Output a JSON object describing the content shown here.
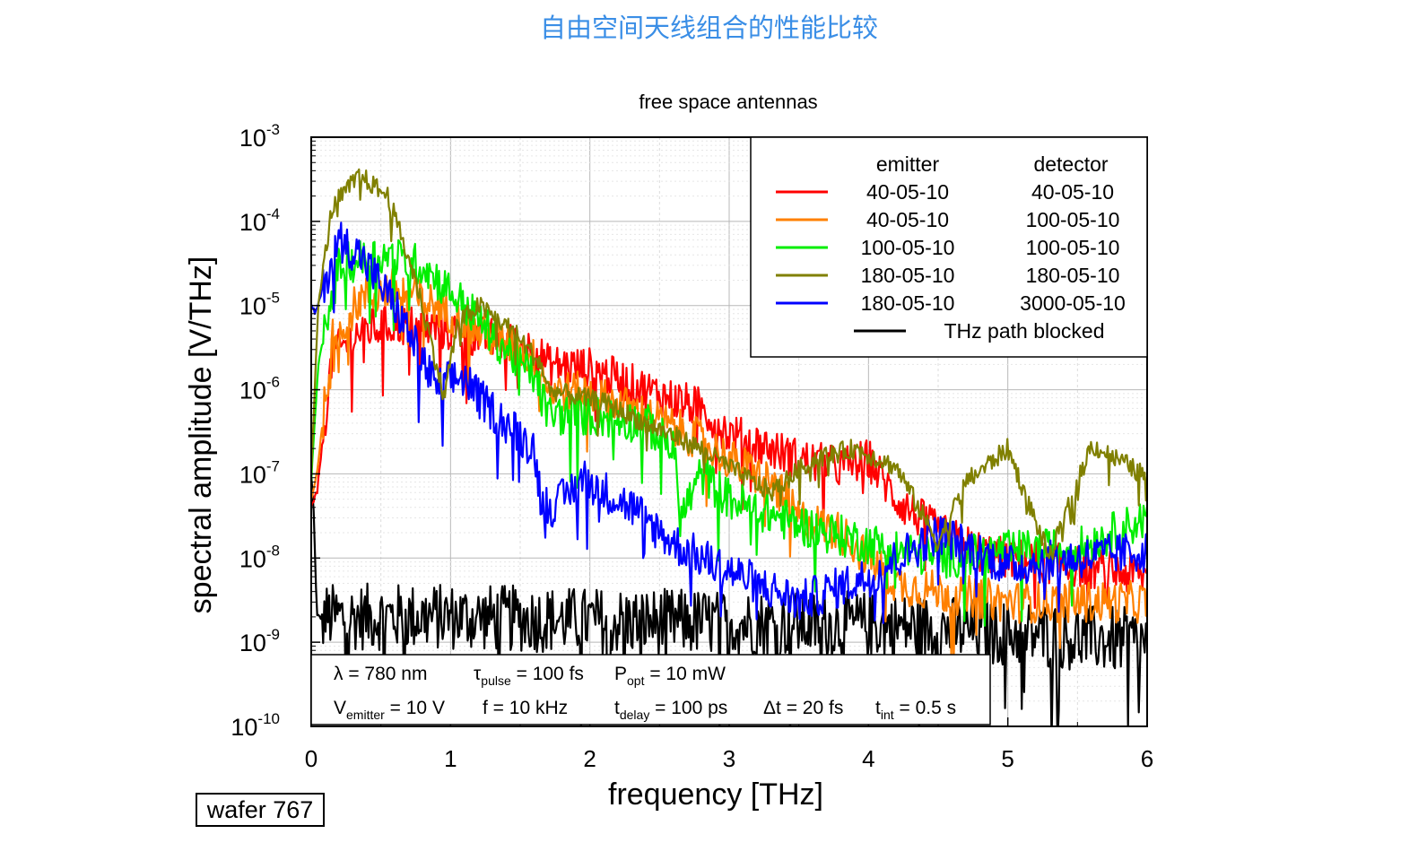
{
  "page": {
    "heading": "自由空间天线组合的性能比较"
  },
  "chart_data": {
    "type": "line",
    "title": "free space antennas",
    "xlabel": "frequency [THz]",
    "ylabel": "spectral amplitude [V/THz]",
    "xlim": [
      0,
      6
    ],
    "ylim": [
      1e-10,
      0.001
    ],
    "yscale": "log",
    "x_ticks": [
      "0",
      "1",
      "2",
      "3",
      "4",
      "5",
      "6"
    ],
    "y_ticks": [
      {
        "base": "10",
        "exp": "-3"
      },
      {
        "base": "10",
        "exp": "-4"
      },
      {
        "base": "10",
        "exp": "-5"
      },
      {
        "base": "10",
        "exp": "-6"
      },
      {
        "base": "10",
        "exp": "-7"
      },
      {
        "base": "10",
        "exp": "-8"
      },
      {
        "base": "10",
        "exp": "-9"
      },
      {
        "base": "10",
        "exp": "-10"
      }
    ],
    "grid": true,
    "legend": {
      "position": "top-right",
      "emitter_header": "emitter",
      "detector_header": "detector",
      "entries": [
        {
          "emitter": "40-05-10",
          "detector": "40-05-10",
          "color": "#ff0000"
        },
        {
          "emitter": "40-05-10",
          "detector": "100-05-10",
          "color": "#ff8000"
        },
        {
          "emitter": "100-05-10",
          "detector": "100-05-10",
          "color": "#00ee00"
        },
        {
          "emitter": "180-05-10",
          "detector": "180-05-10",
          "color": "#808000"
        },
        {
          "emitter": "180-05-10",
          "detector": "3000-05-10",
          "color": "#0000ff"
        },
        {
          "label": "THz path blocked",
          "color": "#000000"
        }
      ]
    },
    "series": [
      {
        "name": "40-05-10 / 40-05-10",
        "color": "#ff0000",
        "noise": 0.25,
        "x": [
          0,
          0.04,
          0.15,
          0.35,
          0.6,
          1.0,
          1.3,
          1.6,
          1.7,
          2.0,
          2.4,
          2.8,
          3.0,
          3.5,
          3.8,
          4.0,
          4.2,
          4.5,
          4.8,
          5.0,
          5.5,
          6.0
        ],
        "y": [
          4e-08,
          6e-08,
          2.5e-06,
          5e-06,
          6e-06,
          5e-06,
          4e-06,
          3e-06,
          2e-06,
          1.8e-06,
          1e-06,
          6e-07,
          3e-07,
          1.5e-07,
          1.2e-07,
          1.5e-07,
          5e-08,
          2e-08,
          1.2e-08,
          1e-08,
          8e-09,
          6e-09
        ]
      },
      {
        "name": "40-05-10 / 100-05-10",
        "color": "#ff8000",
        "noise": 0.25,
        "x": [
          0,
          0.04,
          0.15,
          0.35,
          0.6,
          0.9,
          1.2,
          1.5,
          1.65,
          1.7,
          2.0,
          2.4,
          2.8,
          3.0,
          3.3,
          3.5,
          3.8,
          4.2,
          4.5,
          5.0,
          5.5,
          6.0
        ],
        "y": [
          5e-08,
          1e-07,
          4e-06,
          1.2e-05,
          1.6e-05,
          1e-05,
          5e-06,
          3e-06,
          2e-06,
          1e-06,
          9e-07,
          5e-07,
          2.5e-07,
          1.5e-07,
          8e-08,
          3e-08,
          2e-08,
          5e-09,
          4e-09,
          3e-09,
          3e-09,
          3e-09
        ]
      },
      {
        "name": "100-05-10 / 100-05-10",
        "color": "#00ee00",
        "noise": 0.25,
        "x": [
          0,
          0.05,
          0.2,
          0.5,
          0.8,
          1.1,
          1.4,
          1.6,
          1.7,
          2.0,
          2.4,
          2.6,
          2.65,
          2.8,
          3.0,
          3.5,
          4.0,
          4.5,
          5.0,
          5.5,
          6.0
        ],
        "y": [
          8e-08,
          2e-06,
          3e-05,
          4e-05,
          3e-05,
          1e-05,
          3e-06,
          1.5e-06,
          5e-07,
          5e-07,
          4e-07,
          2e-07,
          3e-08,
          1e-07,
          5e-08,
          2.5e-08,
          1.5e-08,
          1e-08,
          1.2e-08,
          1.3e-08,
          3e-08
        ]
      },
      {
        "name": "180-05-10 / 180-05-10",
        "color": "#808000",
        "noise": 0.12,
        "x": [
          0,
          0.05,
          0.15,
          0.35,
          0.55,
          0.75,
          0.9,
          0.95,
          1.05,
          1.2,
          1.45,
          1.65,
          1.7,
          2.1,
          2.4,
          2.8,
          3.0,
          3.3,
          3.6,
          3.9,
          4.2,
          4.4,
          4.5,
          4.7,
          5.0,
          5.3,
          5.6,
          5.85,
          6.0
        ],
        "y": [
          1e-07,
          1e-05,
          0.00015,
          0.00035,
          0.0002,
          2e-05,
          2e-06,
          8e-07,
          6e-06,
          1e-05,
          5e-06,
          2e-06,
          1e-06,
          7e-07,
          4e-07,
          2e-07,
          1.2e-07,
          6e-08,
          1.5e-07,
          2e-07,
          1.2e-07,
          3e-08,
          1.5e-08,
          8e-08,
          2e-07,
          1e-08,
          2.2e-07,
          1.3e-07,
          9e-08
        ]
      },
      {
        "name": "180-05-10 / 3000-05-10",
        "color": "#0000ff",
        "noise": 0.25,
        "x": [
          0,
          0.03,
          0.1,
          0.2,
          0.35,
          0.6,
          0.85,
          0.9,
          1.0,
          1.1,
          1.2,
          1.4,
          1.6,
          1.65,
          1.75,
          1.95,
          2.3,
          2.6,
          2.8,
          3.2,
          3.5,
          4.0,
          4.5,
          5.0,
          5.5,
          6.0
        ],
        "y": [
          1e-05,
          8e-06,
          2e-05,
          6e-05,
          4e-05,
          1e-05,
          1.5e-06,
          1e-06,
          1.3e-06,
          1.4e-06,
          8e-07,
          4e-07,
          2e-07,
          5e-08,
          4e-08,
          9e-08,
          4e-08,
          1.5e-08,
          1e-08,
          5e-09,
          3e-09,
          6e-09,
          2e-08,
          8e-09,
          1e-08,
          1.2e-08
        ]
      },
      {
        "name": "THz path blocked",
        "color": "#000000",
        "noise": 0.4,
        "x": [
          0,
          0.02,
          0.04,
          0.1,
          1,
          2,
          3,
          4,
          5,
          6
        ],
        "y": [
          1e-07,
          3e-08,
          2e-09,
          2e-09,
          2e-09,
          1.8e-09,
          1.7e-09,
          1.6e-09,
          1.3e-09,
          1e-09
        ]
      }
    ],
    "annotation": {
      "lambda": "λ = 780 nm",
      "tau_sym": "τ",
      "tau_sub": "pulse",
      "tau_val": " = 100 fs",
      "p_sym": "P",
      "p_sub": "opt",
      "p_val": " = 10 mW",
      "v_sym": "V",
      "v_sub": "emitter",
      "v_val": " = 10 V",
      "f": "f = 10 kHz",
      "td_sym": "t",
      "td_sub": "delay",
      "td_val": " = 100 ps",
      "dt": "Δt = 20 fs",
      "ti_sym": "t",
      "ti_sub": "int",
      "ti_val": " = 0.5 s"
    },
    "wafer_label": "wafer 767"
  }
}
